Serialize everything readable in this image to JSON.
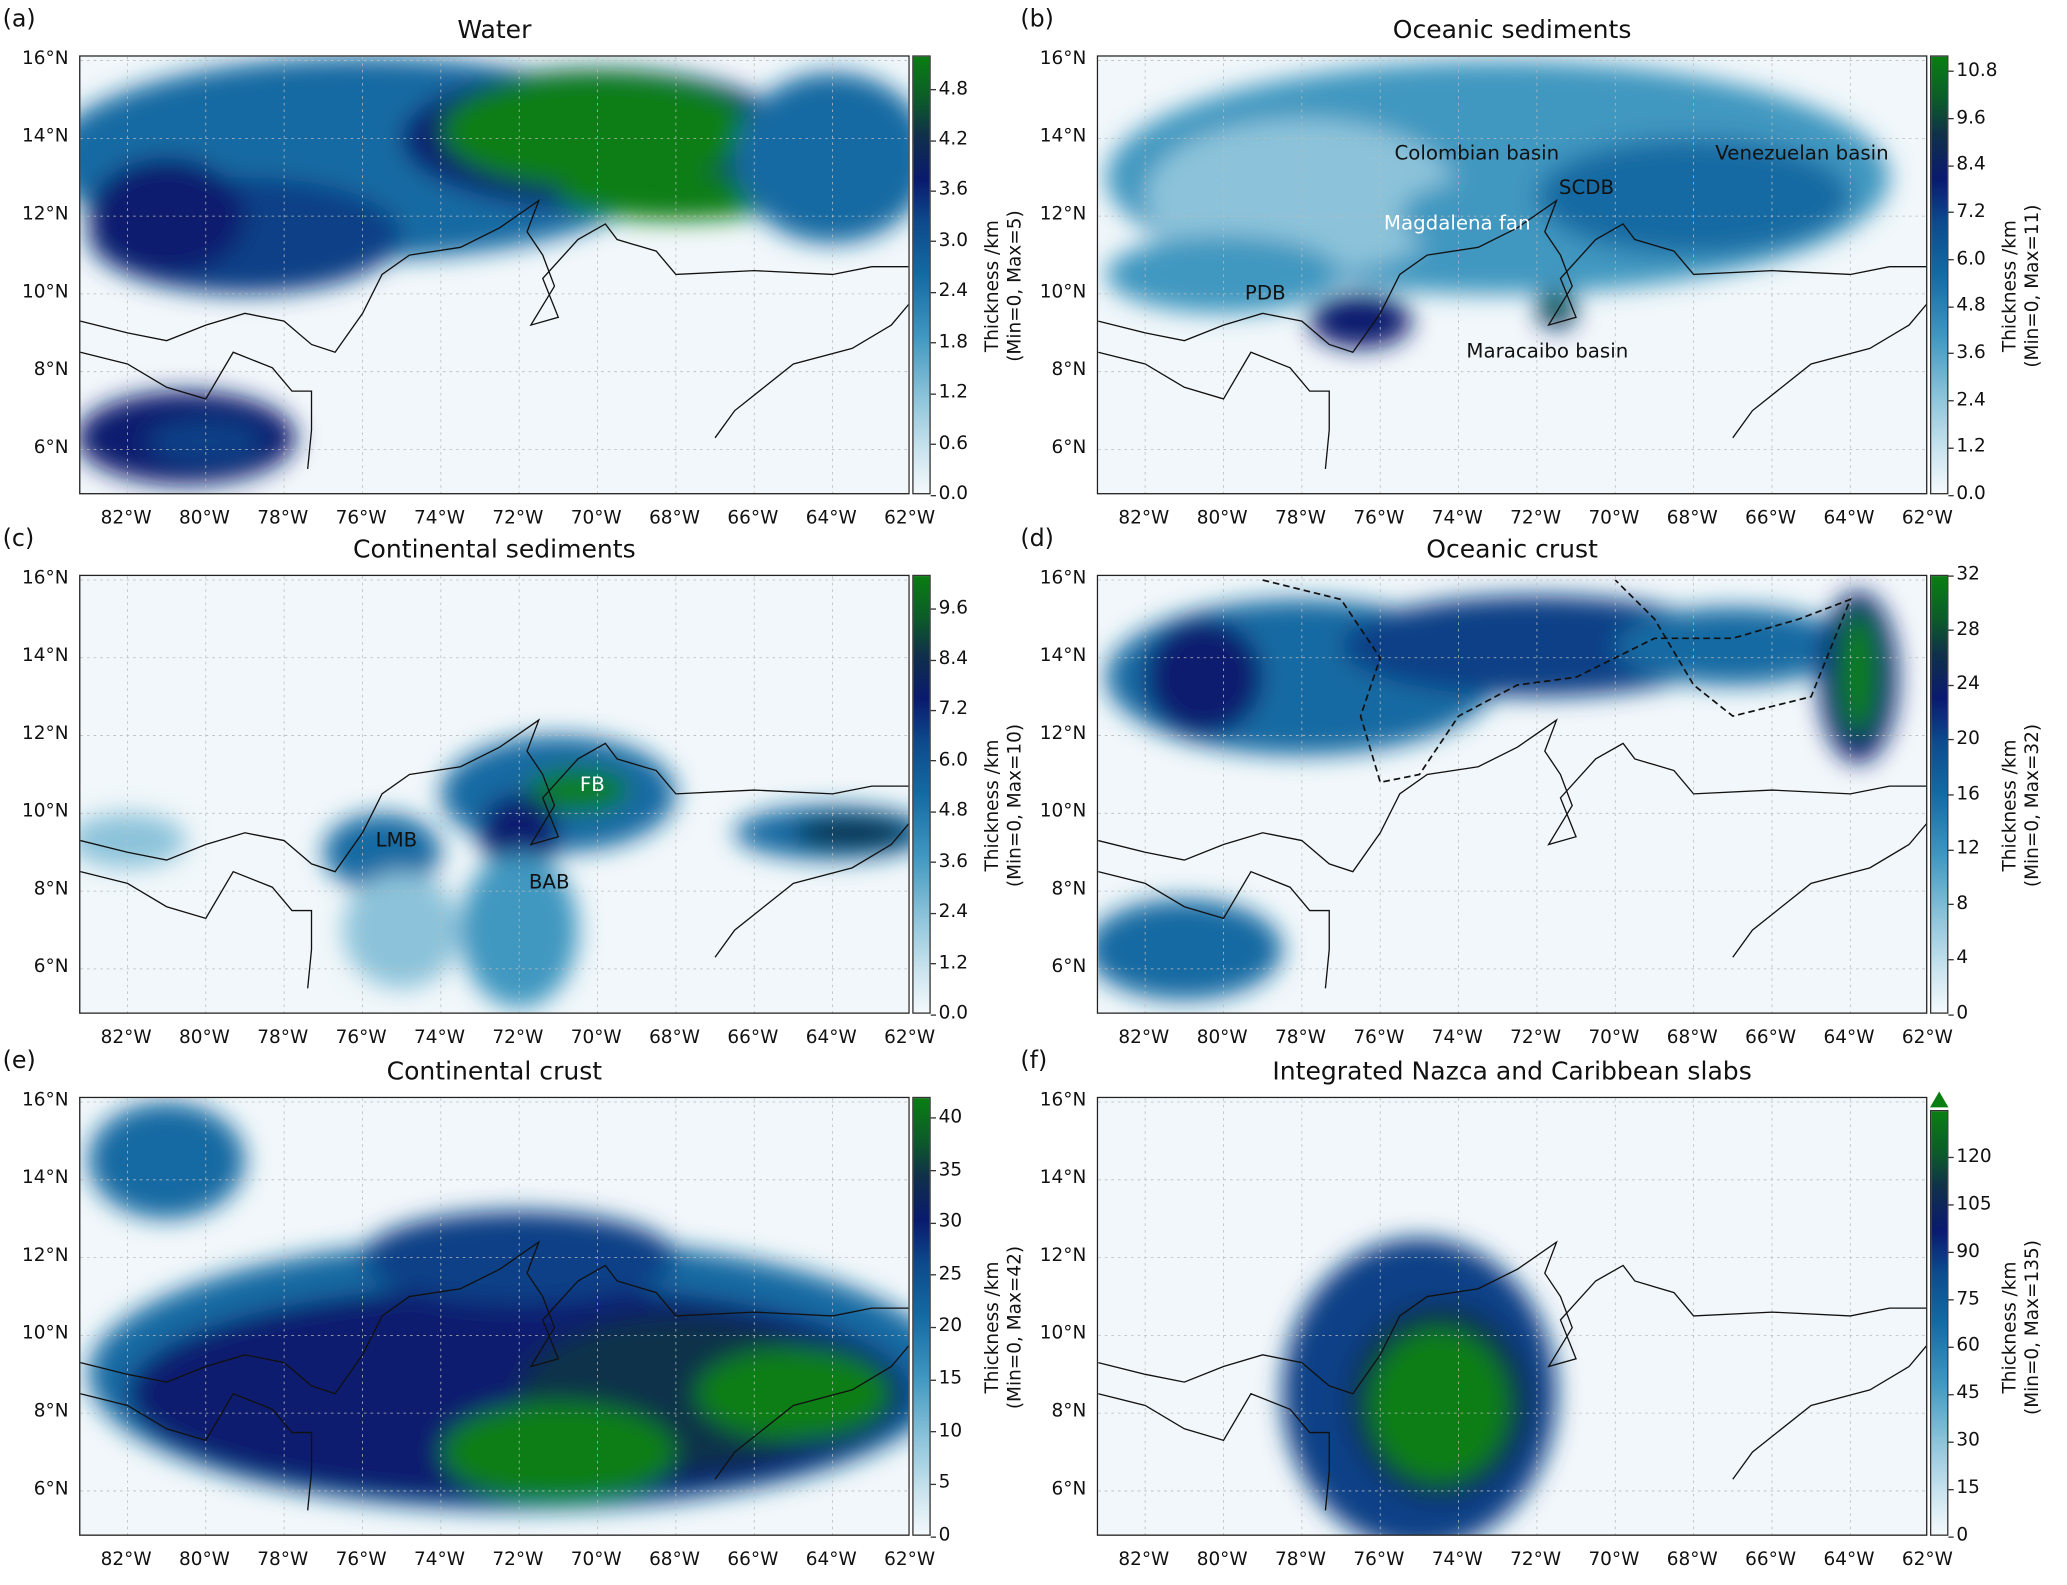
{
  "figure": {
    "x_ticks": [
      "82°W",
      "80°W",
      "78°W",
      "76°W",
      "74°W",
      "72°W",
      "70°W",
      "68°W",
      "66°W",
      "64°W",
      "62°W"
    ],
    "y_ticks": [
      "16°N",
      "14°N",
      "12°N",
      "10°N",
      "8°N",
      "6°N"
    ],
    "colormap_colors": [
      "#f4f9fc",
      "#8cc3da",
      "#146aa3",
      "#0a1a6e",
      "#10304a",
      "#0a7e12"
    ]
  },
  "panels": [
    {
      "label": "(a)",
      "title": "Water",
      "cb_label": "Thickness /km",
      "cb_range_label": "(Min=0, Max=5)",
      "cb_range": [
        0,
        5.2
      ],
      "cb_ticks": [
        "0.0",
        "0.6",
        "1.2",
        "1.8",
        "2.4",
        "3.0",
        "3.6",
        "4.2",
        "4.8"
      ],
      "annotations": []
    },
    {
      "label": "(b)",
      "title": "Oceanic sediments",
      "cb_label": "Thickness /km",
      "cb_range_label": "(Min=0, Max=11)",
      "cb_range": [
        0,
        11.2
      ],
      "cb_ticks": [
        "0.0",
        "1.2",
        "2.4",
        "3.6",
        "4.8",
        "6.0",
        "7.2",
        "8.4",
        "9.6",
        "10.8"
      ],
      "annotations": [
        "Colombian basin",
        "Venezuelan basin",
        "SCDB",
        "Magdalena fan",
        "PDB",
        "Maracaibo basin"
      ]
    },
    {
      "label": "(c)",
      "title": "Continental sediments",
      "cb_label": "Thickness /km",
      "cb_range_label": "(Min=0, Max=10)",
      "cb_range": [
        0,
        10.4
      ],
      "cb_ticks": [
        "0.0",
        "1.2",
        "2.4",
        "3.6",
        "4.8",
        "6.0",
        "7.2",
        "8.4",
        "9.6"
      ],
      "annotations": [
        "FB",
        "LMB",
        "BAB"
      ]
    },
    {
      "label": "(d)",
      "title": "Oceanic crust",
      "cb_label": "Thickness /km",
      "cb_range_label": "(Min=0, Max=32)",
      "cb_range": [
        0,
        32
      ],
      "cb_ticks": [
        "0",
        "4",
        "8",
        "12",
        "16",
        "20",
        "24",
        "28",
        "32"
      ],
      "annotations": []
    },
    {
      "label": "(e)",
      "title": "Continental crust",
      "cb_label": "Thickness /km",
      "cb_range_label": "(Min=0, Max=42)",
      "cb_range": [
        0,
        42
      ],
      "cb_ticks": [
        "0",
        "5",
        "10",
        "15",
        "20",
        "25",
        "30",
        "35",
        "40"
      ],
      "annotations": []
    },
    {
      "label": "(f)",
      "title": "Integrated Nazca and Caribbean slabs",
      "cb_label": "Thickness /km",
      "cb_range_label": "(Min=0, Max=135)",
      "cb_range": [
        0,
        135
      ],
      "cb_ticks": [
        "0",
        "15",
        "30",
        "45",
        "60",
        "75",
        "90",
        "105",
        "120"
      ],
      "annotations": []
    }
  ]
}
